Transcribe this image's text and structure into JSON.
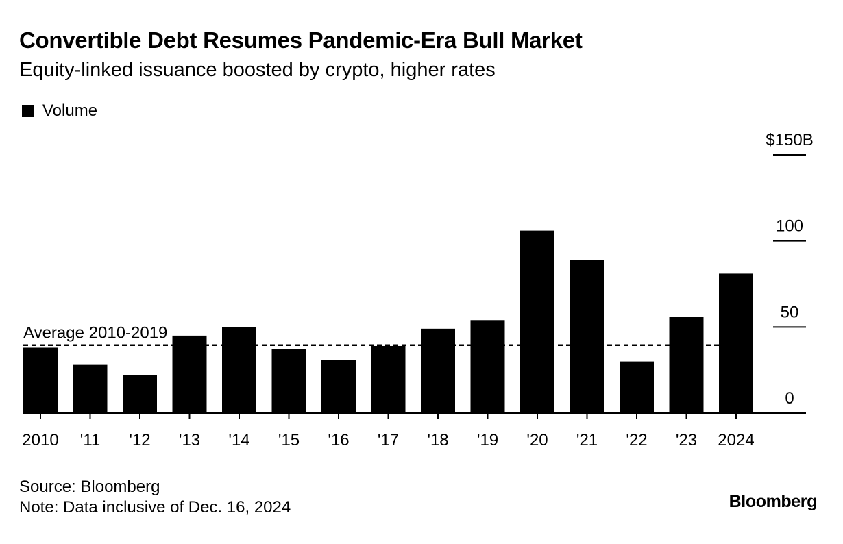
{
  "header": {
    "title": "Convertible Debt Resumes Pandemic-Era Bull Market",
    "subtitle": "Equity-linked issuance boosted by crypto, higher rates"
  },
  "legend": {
    "label": "Volume"
  },
  "colors": {
    "bar": "#000000",
    "axis": "#000000",
    "background": "#ffffff"
  },
  "chart_data": {
    "type": "bar",
    "title": "Convertible Debt Resumes Pandemic-Era Bull Market",
    "subtitle": "Equity-linked issuance boosted by crypto, higher rates",
    "categories": [
      "2010",
      "'11",
      "'12",
      "'13",
      "'14",
      "'15",
      "'16",
      "'17",
      "'18",
      "'19",
      "'20",
      "'21",
      "'22",
      "'23",
      "2024"
    ],
    "series": [
      {
        "name": "Volume",
        "values": [
          38,
          28,
          22,
          45,
          50,
          37,
          31,
          39,
          49,
          54,
          106,
          89,
          30,
          56,
          81
        ]
      }
    ],
    "y_ticks": [
      {
        "value": 150,
        "label": "$150B"
      },
      {
        "value": 100,
        "label": "100"
      },
      {
        "value": 50,
        "label": "50"
      },
      {
        "value": 0,
        "label": "0"
      }
    ],
    "ylim": [
      0,
      150
    ],
    "y_axis_position": "right",
    "grid": false,
    "legend_position": "top-left",
    "reference_line": {
      "label": "Average 2010-2019",
      "value": 39.5,
      "style": "dashed"
    }
  },
  "footer": {
    "source": "Source: Bloomberg",
    "note": "Note: Data inclusive of Dec. 16, 2024",
    "logo": "Bloomberg"
  }
}
